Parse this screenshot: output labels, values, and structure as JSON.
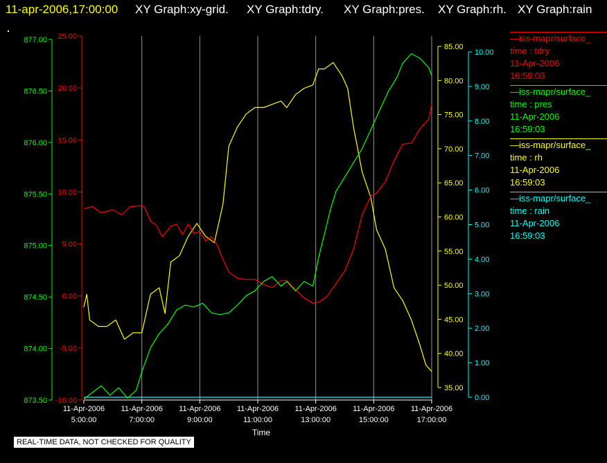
{
  "header": {
    "timestamp": "11-apr-2006,17:00:00",
    "graphs": [
      "XY Graph:xy-grid.",
      "XY Graph:tdry.",
      "XY Graph:pres.",
      "XY Graph:rh.",
      "XY Graph:rain"
    ]
  },
  "colors": {
    "tdry": "#ff0000",
    "pres": "#00ff00",
    "rh": "#ffff00",
    "rain": "#00ffff",
    "grid": "#c8c8c8",
    "text": "#ffffff",
    "timestamp": "#ffff00"
  },
  "legend": [
    {
      "name": "—iss-mapr/surface_",
      "var": "time : tdry",
      "date": "11-Apr-2006",
      "time": "16:59:03",
      "color": "#ff0000"
    },
    {
      "name": "—iss-mapr/surface_",
      "var": "time : pres",
      "date": "11-Apr-2006",
      "time": "16:59:03",
      "color": "#00ff00"
    },
    {
      "name": "—iss-mapr/surface_",
      "var": "time : rh",
      "date": "11-Apr-2006",
      "time": "16:59:03",
      "color": "#ffff00"
    },
    {
      "name": "—iss-mapr/surface_",
      "var": "time : rain",
      "date": "11-Apr-2006",
      "time": "16:59:03",
      "color": "#00ffff"
    }
  ],
  "footer_note": "REAL-TIME DATA, NOT CHECKED FOR QUALITY",
  "chart_data": {
    "type": "line",
    "xlabel": "Time",
    "x_ticks": [
      {
        "date": "11-Apr-2006",
        "time": "5:00:00"
      },
      {
        "date": "11-Apr-2006",
        "time": "7:00:00"
      },
      {
        "date": "11-Apr-2006",
        "time": "9:00:00"
      },
      {
        "date": "11-Apr-2006",
        "time": "11:00:00"
      },
      {
        "date": "11-Apr-2006",
        "time": "13:00:00"
      },
      {
        "date": "11-Apr-2006",
        "time": "15:00:00"
      },
      {
        "date": "11-Apr-2006",
        "time": "17:00:00"
      }
    ],
    "xlim": [
      5,
      17
    ],
    "grid": true,
    "axes": {
      "pres": {
        "ticks": [
          "877.00",
          "876.50",
          "876.00",
          "875.50",
          "875.00",
          "874.50",
          "874.00",
          "873.50"
        ],
        "ylim": [
          873.2,
          877.0
        ]
      },
      "tdry": {
        "ticks": [
          "25.00",
          "20.00",
          "15.00",
          "10.00",
          "5.00",
          "0.00",
          "-5.00",
          "-10.00"
        ],
        "ylim": [
          -10,
          25
        ]
      },
      "rh": {
        "ticks": [
          "85.00",
          "80.00",
          "75.00",
          "70.00",
          "65.00",
          "60.00",
          "55.00",
          "50.00",
          "45.00",
          "40.00",
          "35.00"
        ],
        "ylim": [
          33.5,
          86.5
        ]
      },
      "rain": {
        "ticks": [
          "10.00",
          "9.00",
          "8.00",
          "7.00",
          "6.00",
          "5.00",
          "4.00",
          "3.00",
          "2.00",
          "1.00",
          "0.00"
        ],
        "ylim": [
          -0.05,
          10.3
        ]
      }
    },
    "series": [
      {
        "key": "tdry",
        "x": [
          5.0,
          5.3,
          5.6,
          6.0,
          6.3,
          6.6,
          7.0,
          7.1,
          7.3,
          7.5,
          7.7,
          8.0,
          8.2,
          8.4,
          8.6,
          8.8,
          9.0,
          9.2,
          9.4,
          9.6,
          9.8,
          10.0,
          10.3,
          10.6,
          10.9,
          11.2,
          11.5,
          11.8,
          12.0,
          12.3,
          12.6,
          12.9,
          13.1,
          13.4,
          13.7,
          14.0,
          14.3,
          14.6,
          14.9,
          15.1,
          15.4,
          15.7,
          16.0,
          16.3,
          16.6,
          16.9,
          17.0
        ],
        "y": [
          8.4,
          8.6,
          8.0,
          8.3,
          7.8,
          8.6,
          8.7,
          8.5,
          7.2,
          6.8,
          5.7,
          6.7,
          6.9,
          5.9,
          6.9,
          6.0,
          6.2,
          5.3,
          5.7,
          4.9,
          3.5,
          2.3,
          1.7,
          1.6,
          1.6,
          1.1,
          0.8,
          1.5,
          1.5,
          0.6,
          -0.2,
          -0.7,
          -0.6,
          0.0,
          1.2,
          2.4,
          4.5,
          7.8,
          9.6,
          9.9,
          11.0,
          13.0,
          14.6,
          14.7,
          16.1,
          17.0,
          18.4
        ]
      },
      {
        "key": "pres",
        "x": [
          5.0,
          5.3,
          5.6,
          5.9,
          6.2,
          6.5,
          6.8,
          7.0,
          7.3,
          7.6,
          7.9,
          8.2,
          8.5,
          8.8,
          9.1,
          9.4,
          9.7,
          10.0,
          10.3,
          10.6,
          10.9,
          11.2,
          11.5,
          11.8,
          12.0,
          12.3,
          12.6,
          12.9,
          13.1,
          13.3,
          13.5,
          13.7,
          14.0,
          14.3,
          14.6,
          14.9,
          15.2,
          15.5,
          15.8,
          16.0,
          16.3,
          16.6,
          16.9,
          17.0
        ],
        "y": [
          873.21,
          873.28,
          873.35,
          873.25,
          873.33,
          873.22,
          873.3,
          873.5,
          873.75,
          873.9,
          874.0,
          874.15,
          874.2,
          874.18,
          874.22,
          874.12,
          874.1,
          874.12,
          874.2,
          874.3,
          874.35,
          874.45,
          874.5,
          874.4,
          874.45,
          874.35,
          874.45,
          874.4,
          874.7,
          874.95,
          875.2,
          875.4,
          875.55,
          875.7,
          875.85,
          876.05,
          876.25,
          876.45,
          876.6,
          876.75,
          876.85,
          876.8,
          876.7,
          876.62
        ],
        "rescale_from": "tdry_axis_note"
      },
      {
        "key": "rh",
        "x": [
          5.0,
          5.1,
          5.2,
          5.5,
          5.8,
          6.1,
          6.4,
          6.7,
          7.0,
          7.3,
          7.6,
          7.8,
          8.0,
          8.3,
          8.6,
          8.9,
          9.2,
          9.5,
          9.8,
          10.0,
          10.3,
          10.6,
          10.9,
          11.2,
          11.5,
          11.8,
          12.0,
          12.3,
          12.6,
          12.9,
          13.1,
          13.3,
          13.6,
          13.9,
          14.1,
          14.3,
          14.6,
          14.9,
          15.1,
          15.4,
          15.7,
          16.0,
          16.3,
          16.6,
          16.8,
          17.0
        ],
        "y": [
          46,
          48,
          44,
          43,
          43,
          44,
          41,
          42,
          42,
          48,
          49,
          45,
          53,
          54,
          57,
          59,
          57,
          56,
          62,
          71,
          74,
          76,
          77,
          77,
          77.5,
          78,
          77,
          79,
          80,
          80.5,
          83,
          83,
          84,
          82,
          80,
          74,
          67,
          63,
          58,
          55,
          49,
          47,
          44,
          40,
          37,
          36
        ]
      },
      {
        "key": "rain",
        "x": [
          5.0,
          17.0
        ],
        "y": [
          0.0,
          0.0
        ]
      }
    ]
  }
}
